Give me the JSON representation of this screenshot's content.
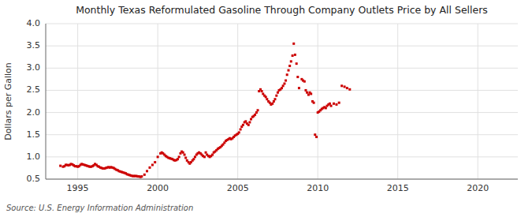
{
  "chart_data": {
    "type": "scatter",
    "title": "Monthly Texas Reformulated Gasoline Through Company Outlets Price by All Sellers",
    "ylabel": "Dollars per Gallon",
    "source": "Source: U.S. Energy Information Administration",
    "color": "#cc0000",
    "marker": "square",
    "grid": true,
    "xlim": [
      1993.0,
      2022.5
    ],
    "ylim": [
      0.5,
      4.0
    ],
    "xticks": [
      1995,
      2000,
      2005,
      2010,
      2015,
      2020
    ],
    "yticks": [
      0.5,
      {
        "value": 1.0,
        "label": "1.0"
      },
      1.5,
      {
        "value": 2.0,
        "label": "2.0"
      },
      2.5,
      {
        "value": 3.0,
        "label": "3.0"
      },
      3.5,
      {
        "value": 4.0,
        "label": "4.0"
      }
    ],
    "x": [
      1993.92,
      1994.08,
      1994.17,
      1994.25,
      1994.33,
      1994.42,
      1994.5,
      1994.58,
      1994.67,
      1994.75,
      1994.83,
      1994.92,
      1995.0,
      1995.08,
      1995.17,
      1995.25,
      1995.33,
      1995.42,
      1995.5,
      1995.58,
      1995.67,
      1995.75,
      1995.83,
      1995.92,
      1996.0,
      1996.08,
      1996.17,
      1996.25,
      1996.33,
      1996.42,
      1996.5,
      1996.58,
      1996.67,
      1996.75,
      1996.83,
      1996.92,
      1997.0,
      1997.08,
      1997.17,
      1997.25,
      1997.33,
      1997.42,
      1997.5,
      1997.58,
      1997.67,
      1997.75,
      1997.83,
      1997.92,
      1998.0,
      1998.08,
      1998.17,
      1998.25,
      1998.33,
      1998.42,
      1998.5,
      1998.58,
      1998.67,
      1998.75,
      1998.83,
      1998.92,
      1999.0,
      1999.17,
      1999.33,
      1999.5,
      1999.67,
      1999.83,
      2000.0,
      2000.17,
      2000.25,
      2000.33,
      2000.42,
      2000.5,
      2000.58,
      2000.67,
      2000.75,
      2000.83,
      2000.92,
      2001.0,
      2001.08,
      2001.17,
      2001.25,
      2001.33,
      2001.42,
      2001.5,
      2001.58,
      2001.67,
      2001.75,
      2001.83,
      2001.92,
      2002.0,
      2002.08,
      2002.17,
      2002.25,
      2002.33,
      2002.42,
      2002.5,
      2002.58,
      2002.67,
      2002.75,
      2002.83,
      2002.92,
      2003.0,
      2003.08,
      2003.17,
      2003.25,
      2003.33,
      2003.42,
      2003.5,
      2003.58,
      2003.67,
      2003.75,
      2003.83,
      2003.92,
      2004.0,
      2004.08,
      2004.17,
      2004.25,
      2004.33,
      2004.42,
      2004.5,
      2004.58,
      2004.67,
      2004.75,
      2004.83,
      2004.92,
      2005.0,
      2005.08,
      2005.17,
      2005.25,
      2005.33,
      2005.42,
      2005.5,
      2005.58,
      2005.67,
      2005.75,
      2005.83,
      2005.92,
      2006.0,
      2006.08,
      2006.17,
      2006.25,
      2006.33,
      2006.42,
      2006.5,
      2006.58,
      2006.67,
      2006.75,
      2006.83,
      2006.92,
      2007.0,
      2007.08,
      2007.17,
      2007.25,
      2007.33,
      2007.42,
      2007.5,
      2007.58,
      2007.67,
      2007.75,
      2007.83,
      2007.92,
      2008.0,
      2008.08,
      2008.17,
      2008.25,
      2008.33,
      2008.42,
      2008.5,
      2008.58,
      2008.67,
      2008.75,
      2008.83,
      2009.0,
      2009.08,
      2009.17,
      2009.25,
      2009.33,
      2009.42,
      2009.5,
      2009.58,
      2009.67,
      2009.75,
      2009.83,
      2009.92,
      2010.0,
      2010.08,
      2010.17,
      2010.25,
      2010.33,
      2010.42,
      2010.5,
      2010.58,
      2010.67,
      2010.75,
      2010.83,
      2011.0,
      2011.17,
      2011.33,
      2011.5,
      2011.67,
      2011.83,
      2012.0
    ],
    "values": [
      0.8,
      0.78,
      0.79,
      0.82,
      0.82,
      0.81,
      0.82,
      0.84,
      0.83,
      0.81,
      0.79,
      0.79,
      0.78,
      0.79,
      0.82,
      0.84,
      0.83,
      0.82,
      0.81,
      0.8,
      0.79,
      0.78,
      0.78,
      0.79,
      0.81,
      0.84,
      0.82,
      0.79,
      0.78,
      0.76,
      0.75,
      0.74,
      0.74,
      0.75,
      0.76,
      0.77,
      0.76,
      0.77,
      0.76,
      0.75,
      0.73,
      0.71,
      0.7,
      0.68,
      0.67,
      0.66,
      0.65,
      0.64,
      0.63,
      0.61,
      0.6,
      0.59,
      0.58,
      0.57,
      0.57,
      0.57,
      0.57,
      0.56,
      0.56,
      0.55,
      0.56,
      0.6,
      0.68,
      0.76,
      0.82,
      0.88,
      1.0,
      1.08,
      1.1,
      1.08,
      1.05,
      1.02,
      1.0,
      0.98,
      0.97,
      0.96,
      0.95,
      0.93,
      0.92,
      0.93,
      0.95,
      1.0,
      1.08,
      1.12,
      1.1,
      1.05,
      0.98,
      0.92,
      0.88,
      0.85,
      0.88,
      0.92,
      0.95,
      1.0,
      1.05,
      1.08,
      1.1,
      1.08,
      1.05,
      1.02,
      1.0,
      1.1,
      1.05,
      1.02,
      1.0,
      1.02,
      1.05,
      1.1,
      1.12,
      1.15,
      1.18,
      1.2,
      1.22,
      1.25,
      1.28,
      1.32,
      1.36,
      1.38,
      1.4,
      1.42,
      1.4,
      1.42,
      1.45,
      1.48,
      1.5,
      1.52,
      1.55,
      1.62,
      1.68,
      1.72,
      1.78,
      1.8,
      1.75,
      1.72,
      1.78,
      1.85,
      1.9,
      1.92,
      1.95,
      2.0,
      2.05,
      2.48,
      2.52,
      2.48,
      2.42,
      2.38,
      2.35,
      2.3,
      2.25,
      2.22,
      2.18,
      2.2,
      2.25,
      2.3,
      2.38,
      2.45,
      2.5,
      2.52,
      2.55,
      2.6,
      2.65,
      2.72,
      2.85,
      2.95,
      3.05,
      3.15,
      3.28,
      3.55,
      3.3,
      3.1,
      2.8,
      2.55,
      2.75,
      2.72,
      2.7,
      2.5,
      2.45,
      2.4,
      2.45,
      2.42,
      2.25,
      2.22,
      1.5,
      1.45,
      2.0,
      2.02,
      2.05,
      2.08,
      2.1,
      2.12,
      2.1,
      2.15,
      2.18,
      2.2,
      2.15,
      2.2,
      2.18,
      2.22,
      2.6,
      2.58,
      2.55,
      2.52
    ]
  }
}
